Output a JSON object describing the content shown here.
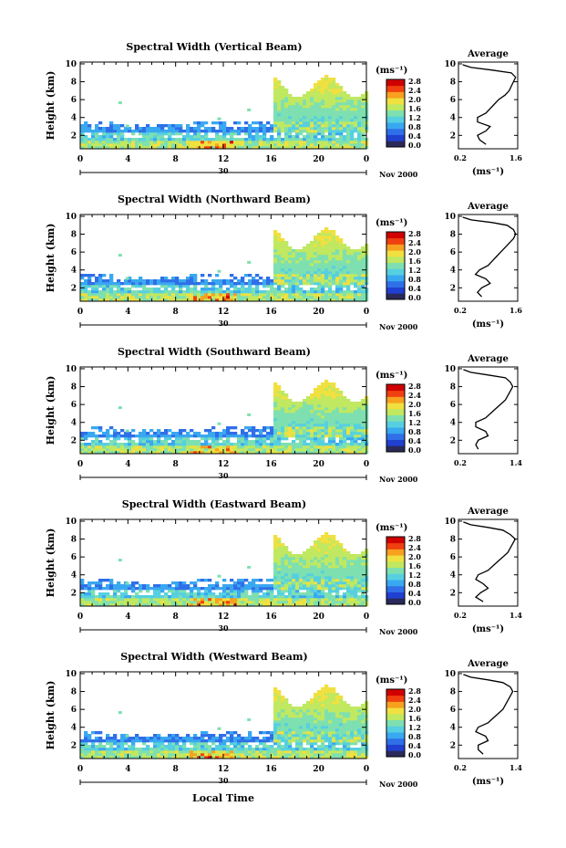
{
  "figure": {
    "xlabel_bottom": "Local Time",
    "date_label": "Nov 2000",
    "day_label": "30"
  },
  "chart_data": [
    {
      "type": "heatmap",
      "title": "Spectral Width (Vertical Beam)",
      "ylabel": "Height (km)",
      "xlim": [
        0,
        24
      ],
      "ylim": [
        0.5,
        10.2
      ],
      "xticks": [
        "0",
        "4",
        "8",
        "12",
        "16",
        "20",
        "0"
      ],
      "yticks": [
        "2",
        "4",
        "6",
        "8",
        "10"
      ],
      "colorbar": {
        "unit": "(ms⁻¹)",
        "ticks": [
          "0.0",
          "0.4",
          "0.8",
          "1.2",
          "1.6",
          "2.0",
          "2.4",
          "2.8"
        ],
        "range": [
          0,
          3.0
        ]
      },
      "average": {
        "title": "Average",
        "xlabel": "(ms⁻¹)",
        "xticks": [
          "0.2",
          "1.6"
        ],
        "xlim": [
          0.2,
          1.6
        ],
        "ylim": [
          0.5,
          10.2
        ],
        "height": [
          1.0,
          1.5,
          2.0,
          2.5,
          3.0,
          3.5,
          4.0,
          4.5,
          5.0,
          5.5,
          6.0,
          6.5,
          7.0,
          7.5,
          8.0,
          8.5,
          9.0,
          9.3,
          9.6,
          9.9
        ],
        "width": [
          0.85,
          0.7,
          0.65,
          0.85,
          0.95,
          0.65,
          0.65,
          0.85,
          0.95,
          1.05,
          1.15,
          1.3,
          1.4,
          1.45,
          1.5,
          1.55,
          1.45,
          1.0,
          0.5,
          0.3
        ]
      }
    },
    {
      "type": "heatmap",
      "title": "Spectral Width (Northward Beam)",
      "ylabel": "Height (km)",
      "xlim": [
        0,
        24
      ],
      "ylim": [
        0.5,
        10.2
      ],
      "xticks": [
        "0",
        "4",
        "8",
        "12",
        "16",
        "20",
        "0"
      ],
      "yticks": [
        "2",
        "4",
        "6",
        "8",
        "10"
      ],
      "colorbar": {
        "unit": "(ms⁻¹)",
        "ticks": [
          "0.0",
          "0.4",
          "0.8",
          "1.2",
          "1.6",
          "2.0",
          "2.4",
          "2.8"
        ],
        "range": [
          0,
          3.0
        ]
      },
      "average": {
        "title": "Average",
        "xlabel": "(ms⁻¹)",
        "xticks": [
          "0.2",
          "1.6"
        ],
        "xlim": [
          0.2,
          1.6
        ],
        "ylim": [
          0.5,
          10.2
        ],
        "height": [
          1.0,
          1.5,
          2.0,
          2.5,
          3.0,
          3.5,
          4.0,
          4.5,
          5.0,
          5.5,
          6.0,
          6.5,
          7.0,
          7.5,
          8.0,
          8.5,
          9.0,
          9.3,
          9.6,
          9.9
        ],
        "width": [
          0.75,
          0.65,
          0.75,
          0.95,
          0.85,
          0.6,
          0.7,
          0.9,
          1.0,
          1.1,
          1.2,
          1.3,
          1.4,
          1.5,
          1.55,
          1.5,
          1.35,
          1.0,
          0.5,
          0.3
        ]
      }
    },
    {
      "type": "heatmap",
      "title": "Spectral Width (Southward Beam)",
      "ylabel": "Height (km)",
      "xlim": [
        0,
        24
      ],
      "ylim": [
        0.5,
        10.2
      ],
      "xticks": [
        "0",
        "4",
        "8",
        "12",
        "16",
        "20",
        "0"
      ],
      "yticks": [
        "2",
        "4",
        "6",
        "8",
        "10"
      ],
      "colorbar": {
        "unit": "(ms⁻¹)",
        "ticks": [
          "0.0",
          "0.4",
          "0.8",
          "1.2",
          "1.6",
          "2.0",
          "2.4",
          "2.8"
        ],
        "range": [
          0,
          3.0
        ]
      },
      "average": {
        "title": "Average",
        "xlabel": "",
        "xticks": [
          "0.2",
          "1.4"
        ],
        "xlim": [
          0.2,
          1.4
        ],
        "ylim": [
          0.5,
          10.2
        ],
        "height": [
          1.0,
          1.5,
          2.0,
          2.5,
          3.0,
          3.5,
          4.0,
          4.5,
          5.0,
          5.5,
          6.0,
          6.5,
          7.0,
          7.5,
          8.0,
          8.5,
          9.0,
          9.3,
          9.6,
          9.9
        ],
        "width": [
          0.6,
          0.55,
          0.6,
          0.8,
          0.75,
          0.55,
          0.55,
          0.75,
          0.85,
          0.95,
          1.05,
          1.15,
          1.2,
          1.25,
          1.3,
          1.25,
          1.15,
          0.8,
          0.45,
          0.3
        ]
      }
    },
    {
      "type": "heatmap",
      "title": "Spectral Width (Eastward Beam)",
      "ylabel": "Height (km)",
      "xlim": [
        0,
        24
      ],
      "ylim": [
        0.5,
        10.2
      ],
      "xticks": [
        "0",
        "4",
        "8",
        "12",
        "16",
        "20",
        "0"
      ],
      "yticks": [
        "2",
        "4",
        "6",
        "8",
        "10"
      ],
      "colorbar": {
        "unit": "(ms⁻¹)",
        "ticks": [
          "0.0",
          "0.4",
          "0.8",
          "1.2",
          "1.6",
          "2.0",
          "2.4",
          "2.8"
        ],
        "range": [
          0,
          3.0
        ]
      },
      "average": {
        "title": "Average",
        "xlabel": "(ms⁻¹)",
        "xticks": [
          "0.2",
          "1.4"
        ],
        "xlim": [
          0.2,
          1.4
        ],
        "ylim": [
          0.5,
          10.2
        ],
        "height": [
          1.0,
          1.5,
          2.0,
          2.5,
          3.0,
          3.5,
          4.0,
          4.5,
          5.0,
          5.5,
          6.0,
          6.5,
          7.0,
          7.5,
          8.0,
          8.5,
          9.0,
          9.3,
          9.6,
          9.9
        ],
        "width": [
          0.7,
          0.55,
          0.65,
          0.8,
          0.7,
          0.55,
          0.6,
          0.8,
          0.9,
          1.0,
          1.1,
          1.2,
          1.25,
          1.3,
          1.35,
          1.25,
          1.1,
          0.8,
          0.45,
          0.3
        ]
      }
    },
    {
      "type": "heatmap",
      "title": "Spectral Width (Westward Beam)",
      "ylabel": "Height (km)",
      "xlim": [
        0,
        24
      ],
      "ylim": [
        0.5,
        10.2
      ],
      "xticks": [
        "0",
        "4",
        "8",
        "12",
        "16",
        "20",
        "0"
      ],
      "yticks": [
        "2",
        "4",
        "6",
        "8",
        "10"
      ],
      "colorbar": {
        "unit": "(ms⁻¹)",
        "ticks": [
          "0.0",
          "0.4",
          "0.8",
          "1.2",
          "1.6",
          "2.0",
          "2.4",
          "2.8"
        ],
        "range": [
          0,
          3.0
        ]
      },
      "average": {
        "title": "Average",
        "xlabel": "(ms⁻¹)",
        "xticks": [
          "0.2",
          "1.4"
        ],
        "xlim": [
          0.2,
          1.4
        ],
        "ylim": [
          0.5,
          10.2
        ],
        "height": [
          1.0,
          1.5,
          2.0,
          2.5,
          3.0,
          3.5,
          4.0,
          4.5,
          5.0,
          5.5,
          6.0,
          6.5,
          7.0,
          7.5,
          8.0,
          8.5,
          9.0,
          9.3,
          9.6,
          9.9
        ],
        "width": [
          0.7,
          0.6,
          0.6,
          0.8,
          0.75,
          0.55,
          0.6,
          0.8,
          0.9,
          1.0,
          1.1,
          1.15,
          1.2,
          1.25,
          1.3,
          1.25,
          1.1,
          0.8,
          0.45,
          0.3
        ]
      }
    }
  ],
  "colors": {
    "scale": [
      "#2a2a5a",
      "#2040d0",
      "#2f6fe8",
      "#3aa8f0",
      "#56d0e0",
      "#7ee0b0",
      "#c0e860",
      "#f0e040",
      "#f8a020",
      "#f04010",
      "#d00000"
    ]
  }
}
